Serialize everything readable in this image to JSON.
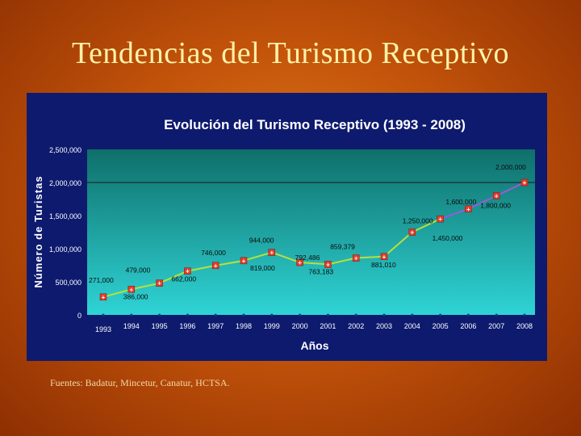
{
  "slide": {
    "title": "Tendencias del Turismo Receptivo",
    "source": "Fuentes: Badatur, Mincetur, Canatur, HCTSA."
  },
  "chart_data": {
    "type": "line",
    "title": "Evolución del Turismo Receptivo (1993 - 2008)",
    "xlabel": "Años",
    "ylabel": "Número de Turistas",
    "categories": [
      "1993",
      "1994",
      "1995",
      "1996",
      "1997",
      "1998",
      "1999",
      "2000",
      "2001",
      "2002",
      "2003",
      "2004",
      "2005",
      "2006",
      "2007",
      "2008"
    ],
    "series": [
      {
        "values": [
          271000,
          386000,
          479000,
          662000,
          746000,
          819000,
          944000,
          792486,
          763183,
          859379,
          881010,
          1250000,
          1450000,
          1600000,
          1800000,
          2000000
        ],
        "labels": [
          "271,000",
          "386,000",
          "479,000",
          "662,000",
          "746,000",
          "819,000",
          "944,000",
          "792,486",
          "763,183",
          "859,379",
          "881,010",
          "1,250,000",
          "1,450,000",
          "1,600,000",
          "1,800,000",
          "2,000,000"
        ],
        "color": "#b8e03a"
      }
    ],
    "segment_colors": {
      "upper": "#9b59d9"
    },
    "yticks": [
      "0",
      "500,000",
      "1,000,000",
      "1,500,000",
      "2,000,000",
      "2,500,000"
    ],
    "ytick_values": [
      0,
      500000,
      1000000,
      1500000,
      2000000,
      2500000
    ],
    "ylim": [
      0,
      2500000
    ],
    "grid": "none",
    "reference_line_value": 2000000,
    "colors": {
      "plot_bg_top": "#0f6f6a",
      "plot_bg_bottom": "#2fd4d6",
      "panel": "#0d1a6e",
      "marker": "#e53a2a",
      "axis_text": "#ffffff"
    }
  }
}
